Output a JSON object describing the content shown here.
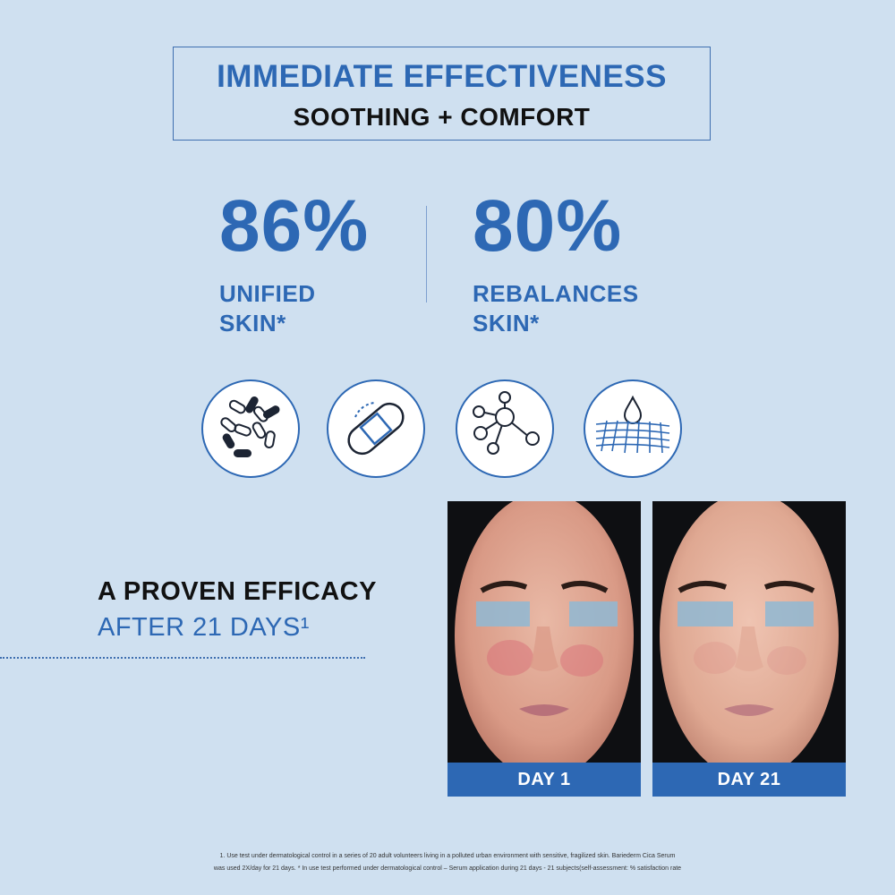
{
  "header": {
    "title": "IMMEDIATE EFFECTIVENESS",
    "subtitle": "SOOTHING + COMFORT"
  },
  "stats": [
    {
      "value": "86%",
      "line1": "UNIFIED",
      "line2": "SKIN*"
    },
    {
      "value": "80%",
      "line1": "REBALANCES",
      "line2": "SKIN*"
    }
  ],
  "icons": [
    "microbiome-icon",
    "bandage-icon",
    "molecule-icon",
    "skin-barrier-drop-icon"
  ],
  "efficacy": {
    "line1": "A PROVEN EFFICACY",
    "line2": "AFTER 21 DAYS¹"
  },
  "photos": [
    {
      "label": "DAY 1"
    },
    {
      "label": "DAY 21"
    }
  ],
  "footnote": {
    "line1": "1. Use test under dermatological control in a series of 20 adult volunteers living in a polluted urban environment with sensitive, fragilized skin. Bariederm Cica Serum",
    "line2": "was used 2X/day for 21 days. * In use test performed under dermatological control – Serum application during 21 days - 21 subjects(self-assessment: % satisfaction rate"
  },
  "colors": {
    "background": "#cfe0f0",
    "brand_blue": "#2d68b4",
    "text_dark": "#111111"
  }
}
